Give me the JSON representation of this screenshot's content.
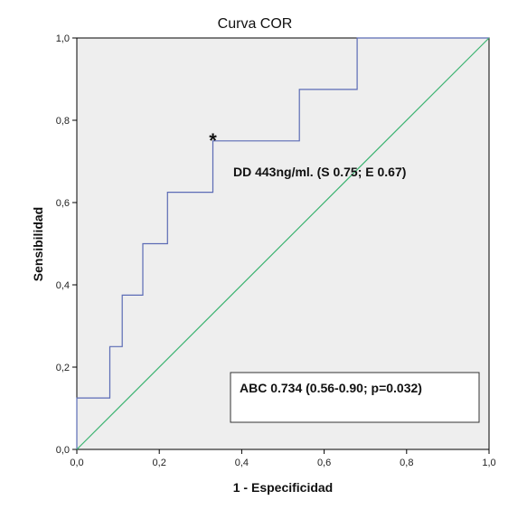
{
  "chart_data": {
    "type": "line",
    "title": "Curva COR",
    "xlabel": "1 - Especificidad",
    "ylabel": "Sensibilidad",
    "xlim": [
      0,
      1
    ],
    "ylim": [
      0,
      1
    ],
    "x_ticks": [
      "0,0",
      "0,2",
      "0,4",
      "0,6",
      "0,8",
      "1,0"
    ],
    "y_ticks": [
      "0,0",
      "0,2",
      "0,4",
      "0,6",
      "0,8",
      "1,0"
    ],
    "grid": false,
    "series": [
      {
        "color": "#5b6bb5",
        "x": [
          0,
          0,
          0.08,
          0.08,
          0.11,
          0.11,
          0.16,
          0.16,
          0.22,
          0.22,
          0.33,
          0.33,
          0.54,
          0.54,
          0.68,
          0.68,
          1.0
        ],
        "y": [
          0,
          0.125,
          0.125,
          0.25,
          0.25,
          0.375,
          0.375,
          0.5,
          0.5,
          0.625,
          0.625,
          0.75,
          0.75,
          0.875,
          0.875,
          1.0,
          1.0
        ]
      },
      {
        "color": "#3cb371",
        "x": [
          0,
          1
        ],
        "y": [
          0,
          1
        ]
      }
    ],
    "marker": {
      "symbol": "*",
      "x": 0.33,
      "y": 0.75
    },
    "annotations": {
      "cutoff": "DD 443ng/ml. (S 0.75; E 0.67)",
      "auc": "ABC 0.734 (0.56-0.90; p=0.032)"
    },
    "plot_background": "#eeeeee"
  }
}
